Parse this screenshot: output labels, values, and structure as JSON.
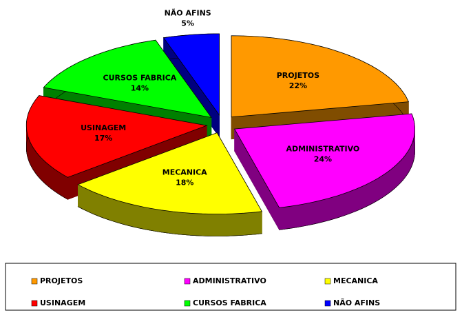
{
  "chart_data": {
    "type": "pie3d",
    "categories": [
      "PROJETOS",
      "ADMINISTRATIVO",
      "MECANICA",
      "USINAGEM",
      "CURSOS FABRICA",
      "NÃO AFINS"
    ],
    "values": [
      22,
      24,
      18,
      17,
      14,
      5
    ],
    "value_labels": [
      "22%",
      "24%",
      "18%",
      "17%",
      "14%",
      "5%"
    ],
    "colors": [
      "#FF9900",
      "#FF00FF",
      "#FFFF00",
      "#FF0000",
      "#00FF00",
      "#0000FF"
    ],
    "legend": "bottom"
  }
}
